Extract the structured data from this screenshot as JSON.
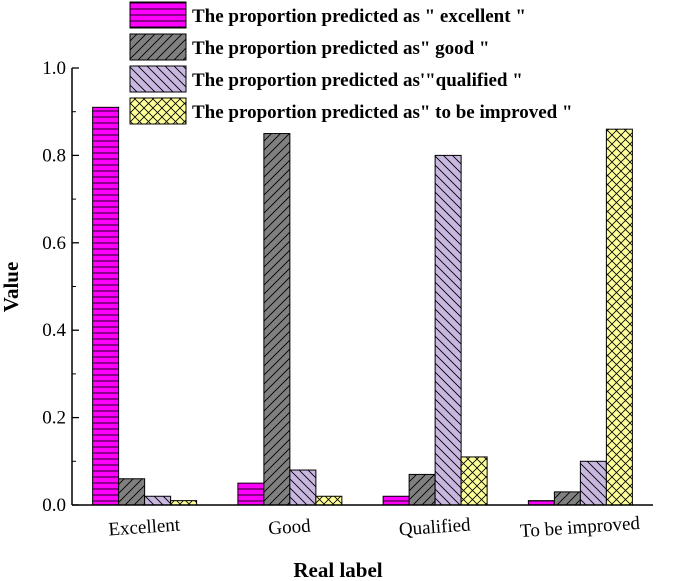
{
  "chart_data": {
    "type": "bar",
    "xlabel": "Real label",
    "ylabel": "Value",
    "ylim": [
      0,
      1.0
    ],
    "yticks": [
      0.0,
      0.2,
      0.4,
      0.6,
      0.8,
      1.0
    ],
    "ytick_labels": [
      "0.0",
      "0.2",
      "0.4",
      "0.6",
      "0.8",
      "1.0"
    ],
    "categories": [
      "Excellent",
      "Good",
      "Qualified",
      "To be improved"
    ],
    "legend_position": "top",
    "series": [
      {
        "name": "The proportion predicted as \" excellent \"",
        "values": [
          0.91,
          0.05,
          0.02,
          0.01
        ],
        "color": "#ff00ff",
        "pattern": "horizontal-lines"
      },
      {
        "name": "The proportion predicted as\" good \"",
        "values": [
          0.06,
          0.85,
          0.07,
          0.03
        ],
        "color": "#808080",
        "pattern": "diagonal-up"
      },
      {
        "name": "The proportion predicted as'\"qualified \"",
        "values": [
          0.02,
          0.08,
          0.8,
          0.1
        ],
        "color": "#c8b8e0",
        "pattern": "diagonal-down"
      },
      {
        "name": "The proportion predicted as\" to be improved \"",
        "values": [
          0.01,
          0.02,
          0.11,
          0.86
        ],
        "color": "#ffff99",
        "pattern": "crosshatch"
      }
    ]
  }
}
